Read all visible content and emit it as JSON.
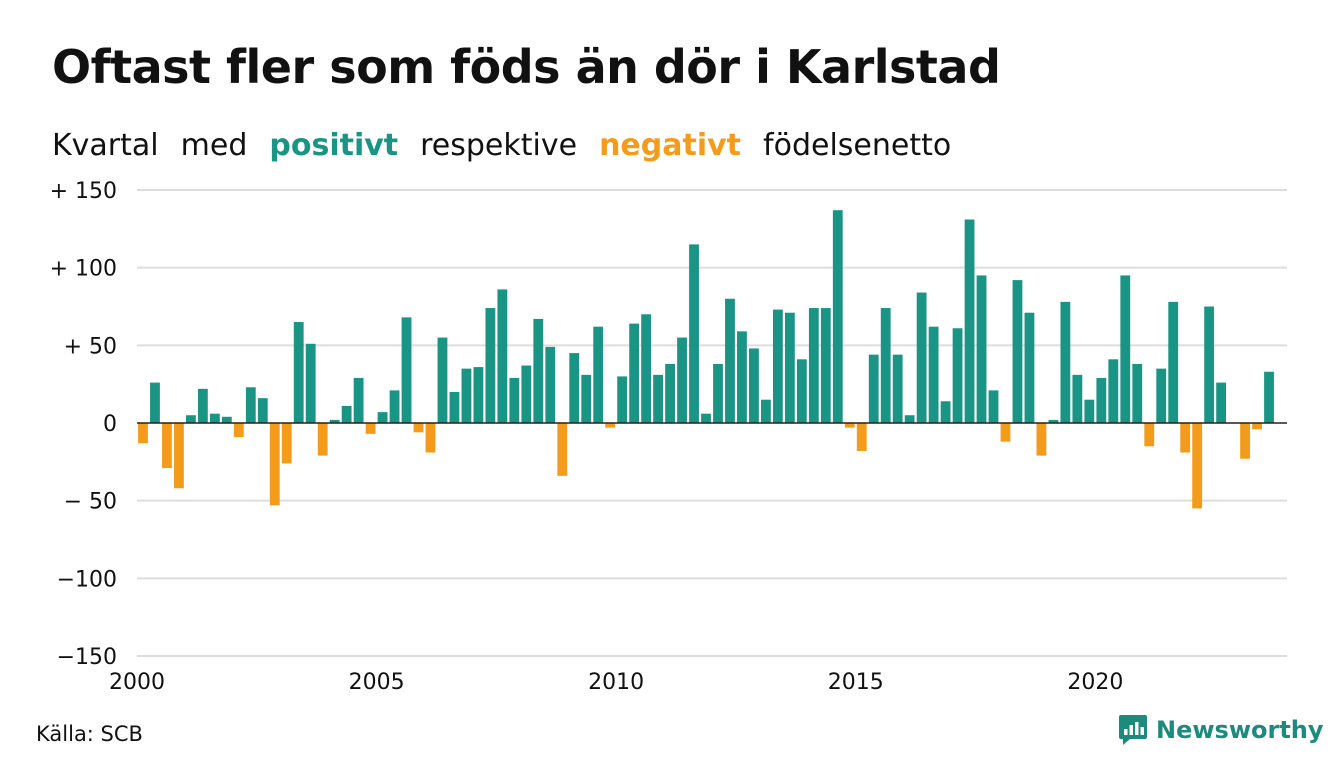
{
  "title": "Oftast fler som föds än dör i Karlstad",
  "subtitle": {
    "w1": "Kvartal",
    "w2": "med",
    "positive_word": "positivt",
    "w3": "respektive",
    "negative_word": "negativt",
    "w4": "födelsenetto"
  },
  "source": "Källa: SCB",
  "brand": "Newsworthy",
  "colors": {
    "positive": "#1a9585",
    "negative": "#f39c1c",
    "grid": "#dddddd",
    "text": "#111111"
  },
  "chart_data": {
    "type": "bar",
    "x_start": "2000 Q1",
    "x_end": "2023 Q4",
    "ylim": [
      -150,
      150
    ],
    "y_ticks": [
      150,
      100,
      50,
      0,
      -50,
      -100,
      -150
    ],
    "y_tick_labels": [
      "+ 150",
      "+ 100",
      "+  50",
      "0",
      "− 50",
      "−100",
      "−150"
    ],
    "x_tick_labels": [
      "2000",
      "2005",
      "2010",
      "2015",
      "2020"
    ],
    "x_tick_years": [
      2000,
      2005,
      2010,
      2015,
      2020
    ],
    "grid": true,
    "values": [
      -13,
      26,
      -29,
      -42,
      5,
      22,
      6,
      4,
      -9,
      23,
      16,
      -53,
      -26,
      65,
      51,
      -21,
      2,
      11,
      29,
      -7,
      7,
      21,
      68,
      -6,
      -19,
      55,
      20,
      35,
      36,
      74,
      86,
      29,
      37,
      67,
      49,
      -34,
      45,
      31,
      62,
      -3,
      30,
      64,
      70,
      31,
      38,
      55,
      115,
      6,
      38,
      80,
      59,
      48,
      15,
      73,
      71,
      41,
      74,
      74,
      137,
      -3,
      -18,
      44,
      74,
      44,
      5,
      84,
      62,
      14,
      61,
      131,
      95,
      21,
      -12,
      92,
      71,
      -21,
      2,
      78,
      31,
      15,
      29,
      41,
      95,
      38,
      -15,
      35,
      78,
      -19,
      -55,
      75,
      26,
      0,
      -23,
      -4,
      33,
      0
    ]
  }
}
